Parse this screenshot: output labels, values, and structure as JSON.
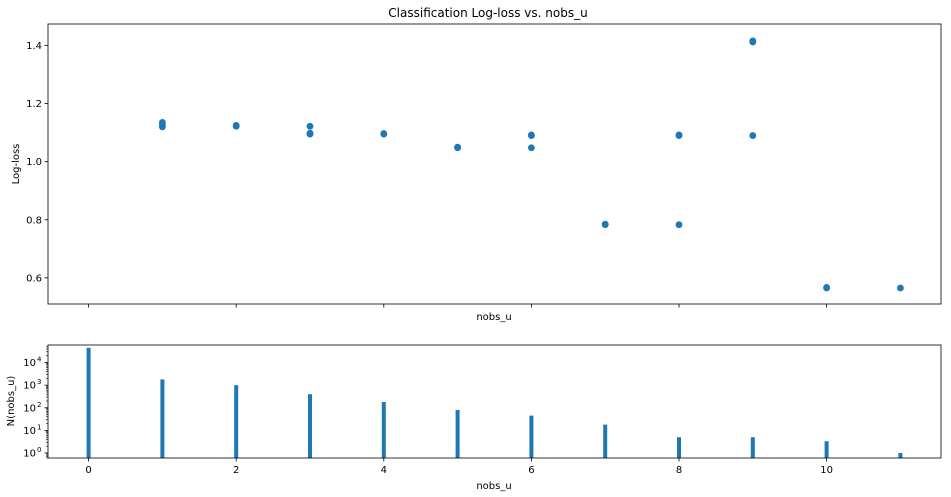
{
  "chart_data": [
    {
      "type": "scatter",
      "title": "Classification Log-loss vs. nobs_u",
      "xlabel": "nobs_u",
      "ylabel": "Log-loss",
      "xlim": [
        -0.55,
        11.55
      ],
      "ylim": [
        0.51,
        1.474
      ],
      "yticks": [
        0.6,
        0.8,
        1.0,
        1.2,
        1.4
      ],
      "ytick_labels": [
        "0.6",
        "0.8",
        "1.0",
        "1.2",
        "1.4"
      ],
      "xticks": [
        0,
        2,
        4,
        6,
        8,
        10
      ],
      "xtick_labels_visible": false,
      "grid": false,
      "color": "#1f77b4",
      "points": [
        {
          "x": 1,
          "y": 1.135
        },
        {
          "x": 1,
          "y": 1.128
        },
        {
          "x": 1,
          "y": 1.12
        },
        {
          "x": 2,
          "y": 1.122
        },
        {
          "x": 2,
          "y": 1.125
        },
        {
          "x": 3,
          "y": 1.122
        },
        {
          "x": 3,
          "y": 1.095
        },
        {
          "x": 3,
          "y": 1.098
        },
        {
          "x": 4,
          "y": 1.095
        },
        {
          "x": 4,
          "y": 1.097
        },
        {
          "x": 5,
          "y": 1.048
        },
        {
          "x": 5,
          "y": 1.05
        },
        {
          "x": 6,
          "y": 1.09
        },
        {
          "x": 6,
          "y": 1.092
        },
        {
          "x": 6,
          "y": 1.048
        },
        {
          "x": 7,
          "y": 0.783
        },
        {
          "x": 7,
          "y": 0.785
        },
        {
          "x": 8,
          "y": 1.09
        },
        {
          "x": 8,
          "y": 1.092
        },
        {
          "x": 8,
          "y": 0.783
        },
        {
          "x": 9,
          "y": 1.412
        },
        {
          "x": 9,
          "y": 1.416
        },
        {
          "x": 9,
          "y": 1.09
        },
        {
          "x": 10,
          "y": 0.565
        },
        {
          "x": 10,
          "y": 0.567
        },
        {
          "x": 11,
          "y": 0.565
        }
      ]
    },
    {
      "type": "bar",
      "xlabel": "nobs_u",
      "ylabel": "N(nobs_u)",
      "yscale": "log",
      "xlim": [
        -0.55,
        11.55
      ],
      "ylim": [
        0.6,
        60000
      ],
      "xticks": [
        0,
        2,
        4,
        6,
        8,
        10
      ],
      "xtick_labels": [
        "0",
        "2",
        "4",
        "6",
        "8",
        "10"
      ],
      "ytick_base_labels": [
        "10",
        "10",
        "10",
        "10",
        "10"
      ],
      "ytick_exponents": [
        "0",
        "1",
        "2",
        "3",
        "4"
      ],
      "color": "#1f77b4",
      "x": [
        0,
        1,
        2,
        3,
        4,
        5,
        6,
        7,
        8,
        9,
        10,
        11
      ],
      "values": [
        45000,
        1800,
        1000,
        400,
        180,
        80,
        45,
        18,
        5,
        5,
        3.3,
        1
      ]
    }
  ]
}
